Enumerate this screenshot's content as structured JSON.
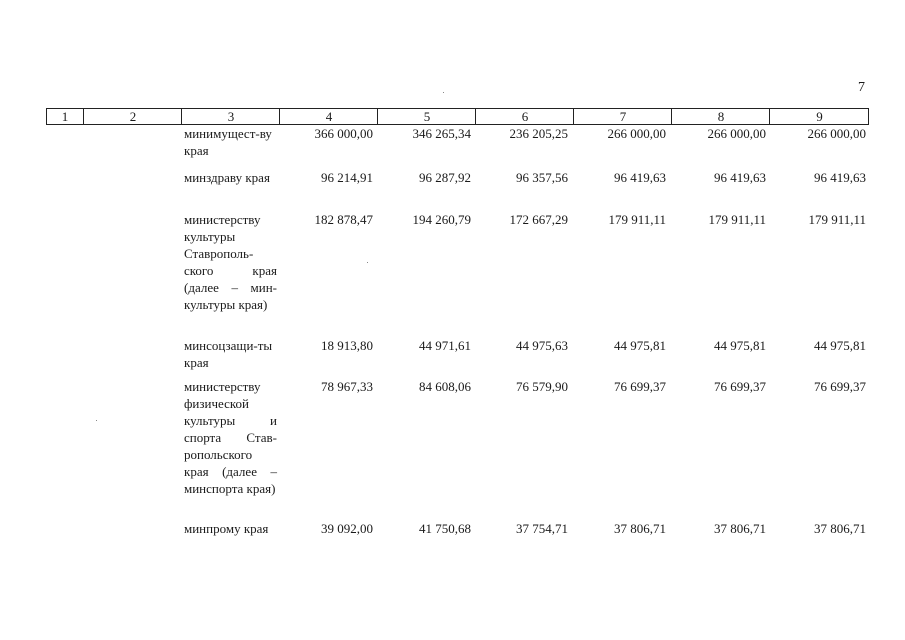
{
  "page_number": "7",
  "header": [
    "1",
    "2",
    "3",
    "4",
    "5",
    "6",
    "7",
    "8",
    "9"
  ],
  "rows": [
    {
      "name": "минимущест-ву края",
      "values": [
        "366 000,00",
        "346 265,34",
        "236 205,25",
        "266 000,00",
        "266 000,00",
        "266 000,00"
      ]
    },
    {
      "name": "минздраву края",
      "values": [
        "96 214,91",
        "96 287,92",
        "96 357,56",
        "96 419,63",
        "96 419,63",
        "96 419,63"
      ]
    },
    {
      "name": "министерству культуры Ставрополь-ского края (далее – мин-культуры края)",
      "values": [
        "182 878,47",
        "194 260,79",
        "172 667,29",
        "179 911,11",
        "179 911,11",
        "179 911,11"
      ]
    },
    {
      "name": "минсоцзащи-ты края",
      "values": [
        "18 913,80",
        "44 971,61",
        "44 975,63",
        "44 975,81",
        "44 975,81",
        "44 975,81"
      ]
    },
    {
      "name": "министерству физической культуры и спорта Став-ропольского края (далее – минспорта края)",
      "values": [
        "78 967,33",
        "84 608,06",
        "76 579,90",
        "76 699,37",
        "76 699,37",
        "76 699,37"
      ]
    },
    {
      "name": "минпрому края",
      "values": [
        "39 092,00",
        "41 750,68",
        "37 754,71",
        "37 806,71",
        "37 806,71",
        "37 806,71"
      ]
    }
  ]
}
